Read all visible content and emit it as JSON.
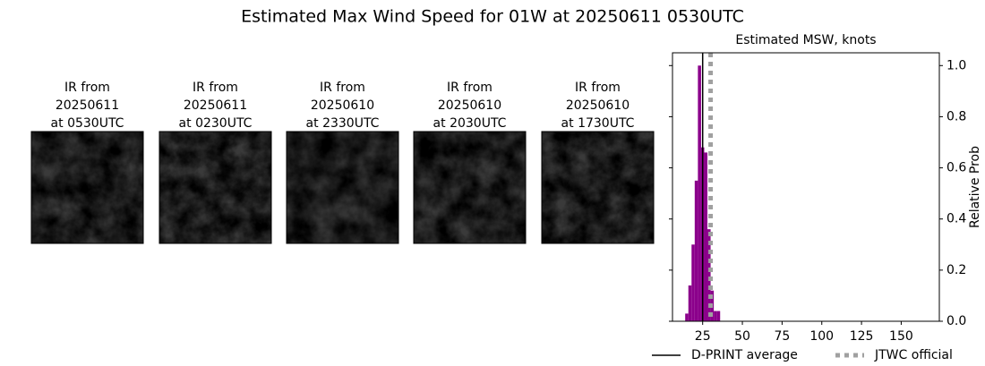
{
  "title": "Estimated Max Wind Speed for 01W at 20250611 0530UTC",
  "panels": [
    {
      "lines": [
        "IR from",
        "20250611",
        "at 0530UTC"
      ]
    },
    {
      "lines": [
        "IR from",
        "20250611",
        "at 0230UTC"
      ]
    },
    {
      "lines": [
        "IR from",
        "20250610",
        "at 2330UTC"
      ]
    },
    {
      "lines": [
        "IR from",
        "20250610",
        "at 2030UTC"
      ]
    },
    {
      "lines": [
        "IR from",
        "20250610",
        "at 1730UTC"
      ]
    }
  ],
  "chart_data": {
    "type": "histogram",
    "title": "Estimated MSW, knots",
    "bins": [
      14,
      16,
      18,
      20,
      22,
      24,
      26,
      28,
      30,
      32,
      34,
      36
    ],
    "values": [
      0.03,
      0.14,
      0.3,
      0.55,
      1.0,
      0.68,
      0.66,
      0.36,
      0.12,
      0.04,
      0.04
    ],
    "color": "#8b008b",
    "xlim": [
      6,
      174
    ],
    "xticks": [
      25,
      50,
      75,
      100,
      125,
      150
    ],
    "ylim": [
      0,
      1.05
    ],
    "yticks": [
      {
        "value": 0,
        "label": "0.0"
      },
      {
        "value": 0.2,
        "label": "0.2"
      },
      {
        "value": 0.4,
        "label": "0.4"
      },
      {
        "value": 0.6,
        "label": "0.6"
      },
      {
        "value": 0.8,
        "label": "0.8"
      },
      {
        "value": 1.0,
        "label": "1.0"
      }
    ],
    "ylabel": "Relative Prob",
    "lines": [
      {
        "name": "D-PRINT average",
        "value": 25,
        "color": "#000000",
        "style": "solid"
      },
      {
        "name": "JTWC official",
        "value": 30,
        "color": "#a0a0a0",
        "style": "dotted"
      }
    ]
  }
}
